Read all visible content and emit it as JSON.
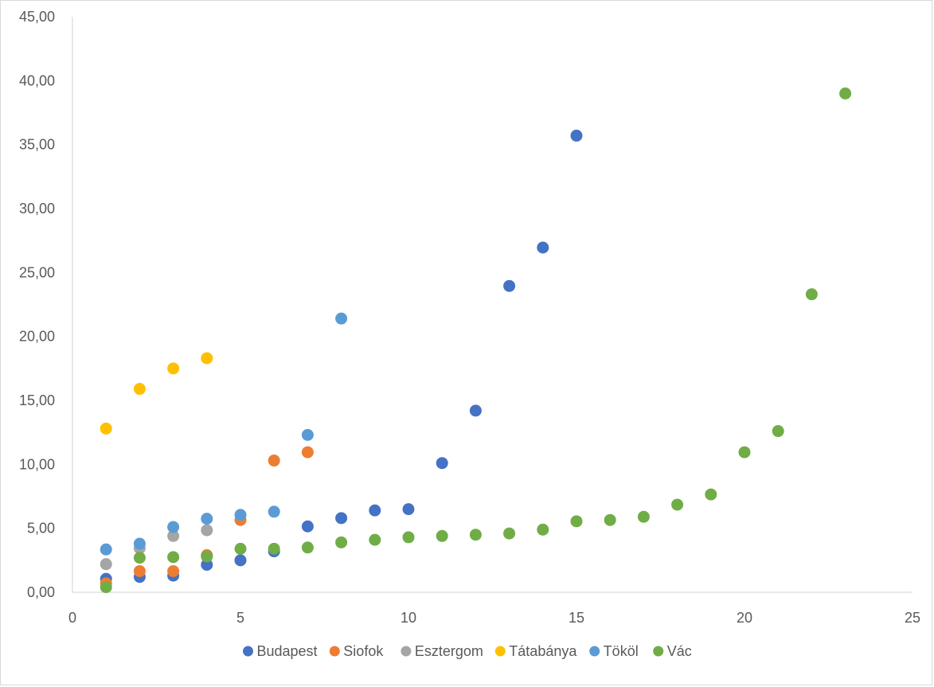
{
  "chart_data": {
    "type": "scatter",
    "title": "",
    "xlabel": "",
    "ylabel": "",
    "xlim": [
      0,
      25
    ],
    "ylim": [
      0,
      45
    ],
    "x_ticks": [
      0,
      5,
      10,
      15,
      20,
      25
    ],
    "x_tick_labels": [
      "0",
      "5",
      "10",
      "15",
      "20",
      "25"
    ],
    "y_ticks": [
      0,
      5,
      10,
      15,
      20,
      25,
      30,
      35,
      40,
      45
    ],
    "y_tick_labels": [
      "0,00",
      "5,00",
      "10,00",
      "15,00",
      "20,00",
      "25,00",
      "30,00",
      "35,00",
      "40,00",
      "45,00"
    ],
    "grid": false,
    "legend_position": "bottom",
    "series": [
      {
        "name": "Budapest",
        "color": "#4472C4",
        "x": [
          1,
          2,
          3,
          4,
          5,
          6,
          7,
          8,
          9,
          10,
          11,
          12,
          13,
          14,
          15
        ],
        "y": [
          1.05,
          1.2,
          1.3,
          2.15,
          2.5,
          3.2,
          5.15,
          5.8,
          6.4,
          6.5,
          10.1,
          14.2,
          23.95,
          26.95,
          35.7
        ]
      },
      {
        "name": "Siofok",
        "color": "#ED7D31",
        "x": [
          1,
          2,
          3,
          4,
          5,
          6,
          7
        ],
        "y": [
          0.7,
          1.65,
          1.65,
          2.9,
          5.65,
          10.3,
          10.95
        ]
      },
      {
        "name": "Esztergom",
        "color": "#A5A5A5",
        "x": [
          1,
          2,
          3,
          4
        ],
        "y": [
          2.2,
          3.45,
          4.4,
          4.85
        ]
      },
      {
        "name": "Tátabánya",
        "color": "#FFC000",
        "x": [
          1,
          2,
          3,
          4
        ],
        "y": [
          12.8,
          15.9,
          17.5,
          18.3
        ]
      },
      {
        "name": "Tököl",
        "color": "#5B9BD5",
        "x": [
          1,
          2,
          3,
          4,
          5,
          6,
          7,
          8
        ],
        "y": [
          3.35,
          3.8,
          5.1,
          5.75,
          6.05,
          6.3,
          12.3,
          21.4
        ]
      },
      {
        "name": "Vác",
        "color": "#70AD47",
        "x": [
          1,
          2,
          3,
          4,
          5,
          6,
          7,
          8,
          9,
          10,
          11,
          12,
          13,
          14,
          15,
          16,
          17,
          18,
          19,
          20,
          21,
          22,
          23
        ],
        "y": [
          0.4,
          2.7,
          2.75,
          2.8,
          3.4,
          3.4,
          3.5,
          3.9,
          4.1,
          4.3,
          4.4,
          4.5,
          4.6,
          4.9,
          5.55,
          5.65,
          5.9,
          6.85,
          7.65,
          10.95,
          12.6,
          23.3,
          39.0
        ]
      }
    ]
  }
}
